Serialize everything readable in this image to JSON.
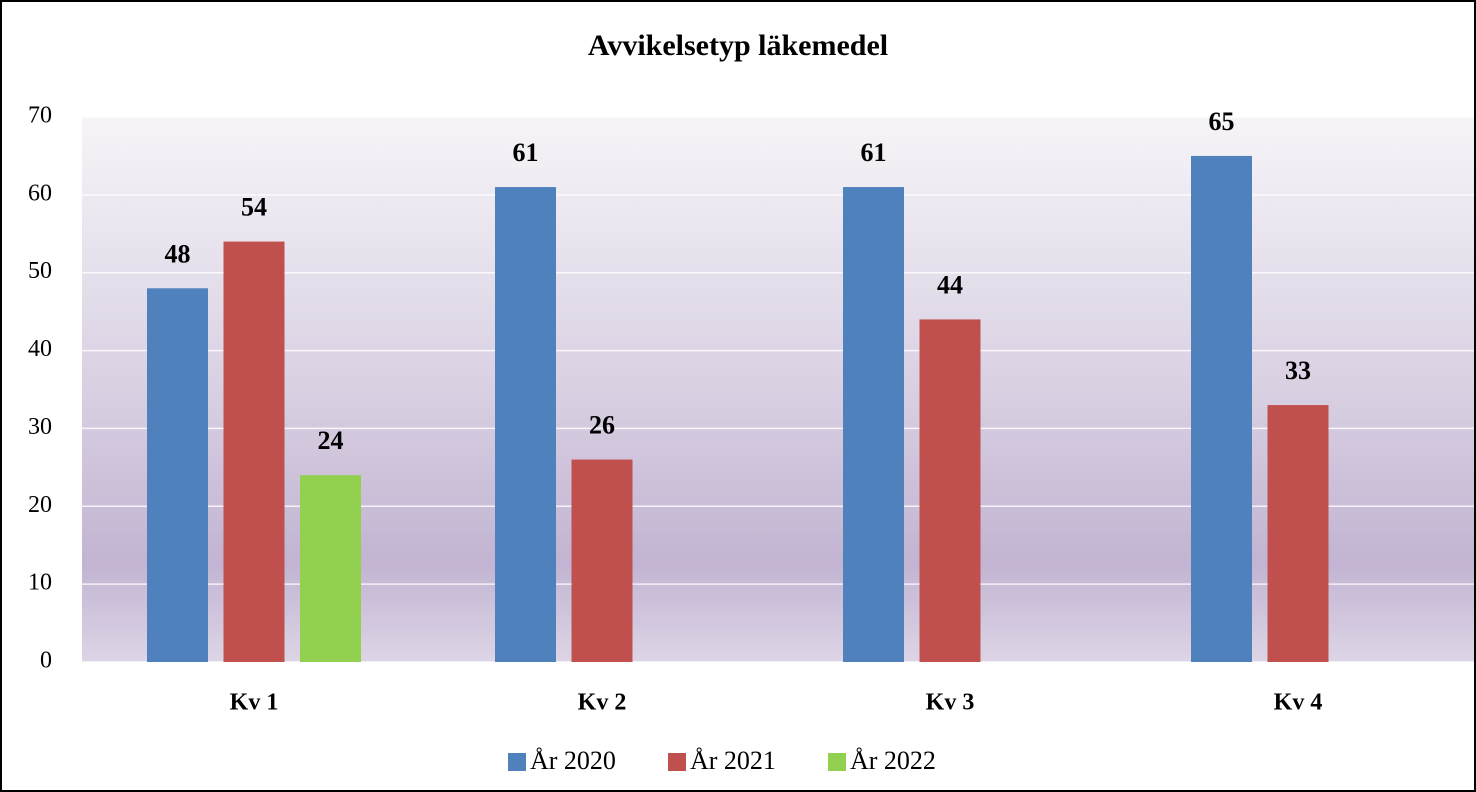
{
  "chart_data": {
    "type": "bar",
    "title": "Avvikelsetyp läkemedel",
    "categories": [
      "Kv 1",
      "Kv 2",
      "Kv 3",
      "Kv 4"
    ],
    "series": [
      {
        "name": "År 2020",
        "color": "#4f81bd",
        "values": [
          48,
          61,
          61,
          65
        ]
      },
      {
        "name": "År 2021",
        "color": "#c0504d",
        "values": [
          54,
          26,
          44,
          33
        ]
      },
      {
        "name": "År 2022",
        "color": "#92d050",
        "values": [
          24,
          null,
          null,
          null
        ]
      }
    ],
    "ylim": [
      0,
      70
    ],
    "yticks": [
      0,
      10,
      20,
      30,
      40,
      50,
      60,
      70
    ],
    "grid": true,
    "legend": "bottom"
  }
}
